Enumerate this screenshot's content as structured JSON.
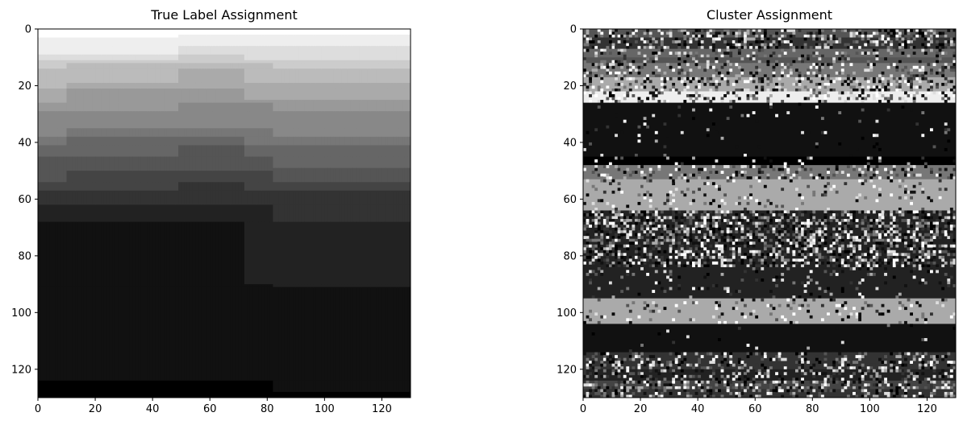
{
  "chart_data": [
    {
      "type": "heatmap",
      "title": "True Label Assignment",
      "colormap": "gray",
      "xlim": [
        0,
        130
      ],
      "ylim": [
        130,
        0
      ],
      "xticks": [
        0,
        20,
        40,
        60,
        80,
        100,
        120
      ],
      "yticks": [
        0,
        20,
        40,
        60,
        80,
        100,
        120
      ],
      "n_cols": 130,
      "n_rows": 130,
      "boundary_segments": [
        {
          "x_from": 0,
          "x_to": 130,
          "y": [
            3,
            6,
            9,
            11,
            14,
            19,
            21,
            26,
            29,
            35,
            38,
            41,
            45,
            50,
            54,
            57,
            62,
            68,
            91,
            124
          ]
        },
        {
          "x_from": 49,
          "x_to": 130,
          "y": [
            2
          ]
        },
        {
          "x_from": 10,
          "x_to": 130,
          "y": [
            12
          ]
        },
        {
          "x_from": 72,
          "x_to": 130,
          "y": [
            25,
            49,
            90
          ]
        },
        {
          "x_from": 82,
          "x_to": 130,
          "y": [
            128
          ]
        }
      ],
      "band_grays": [
        "#000000",
        "#111111",
        "#222222",
        "#333333",
        "#444444",
        "#555555",
        "#666666",
        "#777777",
        "#888888",
        "#999999",
        "#aaaaaa",
        "#bbbbbb",
        "#cccccc",
        "#dddddd",
        "#eeeeee",
        "#ffffff"
      ]
    },
    {
      "type": "heatmap",
      "title": "Cluster Assignment",
      "colormap": "gray",
      "xlim": [
        0,
        130
      ],
      "ylim": [
        130,
        0
      ],
      "xticks": [
        0,
        20,
        40,
        60,
        80,
        100,
        120
      ],
      "yticks": [
        0,
        20,
        40,
        60,
        80,
        100,
        120
      ],
      "n_cols": 130,
      "n_rows": 130,
      "row_bands": [
        {
          "y0": 0,
          "y1": 3,
          "base": "#555555",
          "noise": 0.5
        },
        {
          "y0": 3,
          "y1": 7,
          "base": "#333333",
          "noise": 0.45
        },
        {
          "y0": 7,
          "y1": 10,
          "base": "#666666",
          "noise": 0.25
        },
        {
          "y0": 10,
          "y1": 12,
          "base": "#555555",
          "noise": 0.2
        },
        {
          "y0": 12,
          "y1": 17,
          "base": "#777777",
          "noise": 0.35
        },
        {
          "y0": 17,
          "y1": 22,
          "base": "#aaaaaa",
          "noise": 0.35
        },
        {
          "y0": 22,
          "y1": 26,
          "base": "#eeeeee",
          "noise": 0.25
        },
        {
          "y0": 26,
          "y1": 45,
          "base": "#111111",
          "noise": 0.03
        },
        {
          "y0": 45,
          "y1": 48,
          "base": "#000000",
          "noise": 0.1
        },
        {
          "y0": 48,
          "y1": 53,
          "base": "#777777",
          "noise": 0.3
        },
        {
          "y0": 53,
          "y1": 64,
          "base": "#aaaaaa",
          "noise": 0.12
        },
        {
          "y0": 64,
          "y1": 84,
          "base": "#222222",
          "noise": 0.55
        },
        {
          "y0": 84,
          "y1": 95,
          "base": "#222222",
          "noise": 0.1
        },
        {
          "y0": 95,
          "y1": 104,
          "base": "#aaaaaa",
          "noise": 0.12
        },
        {
          "y0": 104,
          "y1": 114,
          "base": "#111111",
          "noise": 0.02
        },
        {
          "y0": 114,
          "y1": 120,
          "base": "#333333",
          "noise": 0.35
        },
        {
          "y0": 120,
          "y1": 124,
          "base": "#222222",
          "noise": 0.3
        },
        {
          "y0": 124,
          "y1": 127,
          "base": "#444444",
          "noise": 0.45
        },
        {
          "y0": 127,
          "y1": 130,
          "base": "#333333",
          "noise": 0.4
        }
      ],
      "noise_palette": [
        "#000000",
        "#111111",
        "#333333",
        "#555555",
        "#777777",
        "#aaaaaa",
        "#dddddd",
        "#ffffff"
      ]
    }
  ]
}
